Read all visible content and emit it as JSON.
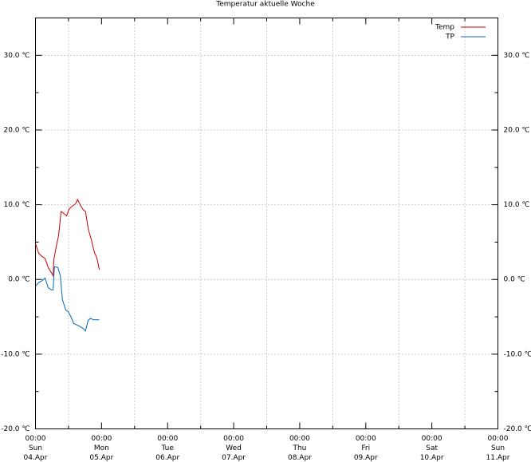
{
  "chart_data": {
    "type": "line",
    "title": "Temperatur aktuelle Woche",
    "xlim": [
      0,
      168
    ],
    "xticks": [
      {
        "value": 0,
        "label": "00:00"
      },
      {
        "value": 24,
        "label": "00:00"
      },
      {
        "value": 48,
        "label": "00:00"
      },
      {
        "value": 72,
        "label": "00:00"
      },
      {
        "value": 96,
        "label": "00:00"
      },
      {
        "value": 120,
        "label": "00:00"
      },
      {
        "value": 144,
        "label": "00:00"
      },
      {
        "value": 168,
        "label": "00:00"
      }
    ],
    "xtick_days": [
      "Sun",
      "Mon",
      "Tue",
      "Wed",
      "Thu",
      "Fri",
      "Sat",
      "Sun"
    ],
    "xtick_dates": [
      "04.Apr",
      "05.Apr",
      "06.Apr",
      "07.Apr",
      "08.Apr",
      "09.Apr",
      "10.Apr",
      "11.Apr"
    ],
    "xgrid": [
      12,
      36,
      60,
      84,
      108,
      132,
      156
    ],
    "ylim": [
      -20,
      35
    ],
    "yticks": [
      {
        "value": -20,
        "label": "-20.0 ℃"
      },
      {
        "value": -10,
        "label": "-10.0 ℃"
      },
      {
        "value": 0,
        "label": "0.0 ℃"
      },
      {
        "value": 10,
        "label": "10.0 ℃"
      },
      {
        "value": 20,
        "label": "20.0 ℃"
      },
      {
        "value": 30,
        "label": "30.0 ℃"
      }
    ],
    "yminor": [
      -15,
      -5,
      5,
      15,
      25
    ],
    "grid": true,
    "legend": "top-right",
    "series": [
      {
        "name": "Temp",
        "color": "#cc0000",
        "x": [
          0,
          1.2,
          2.3,
          3.5,
          4.6,
          5.8,
          6.4,
          6.7,
          7.5,
          8.4,
          9.3,
          10.4,
          11.3,
          12.2,
          13.3,
          14.5,
          15.3,
          16.5,
          17.4,
          18.2,
          19.1,
          20.3,
          21.4,
          22.3,
          23.2
        ],
        "values": [
          4.8,
          3.5,
          3.1,
          2.8,
          1.6,
          0.9,
          0.5,
          2.7,
          4.3,
          5.9,
          9.1,
          8.8,
          8.5,
          9.4,
          9.8,
          10.1,
          10.7,
          9.8,
          9.3,
          9.1,
          6.9,
          5.3,
          3.6,
          2.9,
          1.3
        ]
      },
      {
        "name": "TP",
        "color": "#0066bb",
        "x": [
          0,
          1.2,
          2.3,
          3.5,
          4.6,
          5.8,
          6.4,
          6.9,
          8.1,
          9.0,
          9.8,
          11.0,
          11.9,
          13.0,
          13.9,
          15.1,
          16.2,
          17.4,
          18.2,
          19.1,
          20.0,
          21.1,
          22.3,
          23.2
        ],
        "values": [
          -0.9,
          -0.4,
          -0.2,
          0.2,
          -1.1,
          -1.4,
          -1.4,
          1.7,
          1.6,
          0.5,
          -2.7,
          -4.1,
          -4.3,
          -5.1,
          -5.9,
          -6.1,
          -6.3,
          -6.6,
          -6.9,
          -5.5,
          -5.2,
          -5.4,
          -5.4,
          -5.4
        ]
      }
    ]
  }
}
